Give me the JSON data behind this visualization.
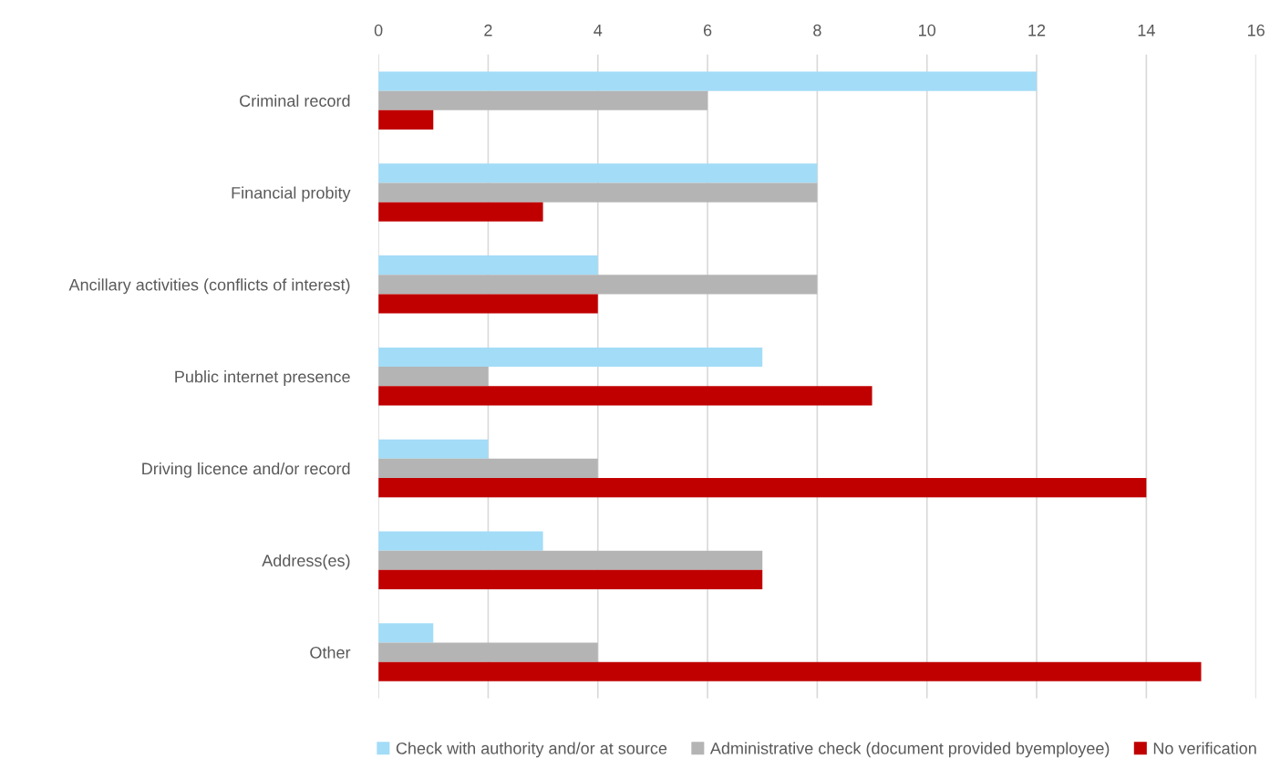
{
  "chart_data": {
    "type": "bar",
    "orientation": "horizontal",
    "categories": [
      "Criminal record",
      "Financial probity",
      "Ancillary activities (conflicts of interest)",
      "Public internet presence",
      "Driving licence and/or record",
      "Address(es)",
      "Other"
    ],
    "series": [
      {
        "name": "Check with authority and/or at source",
        "color": "#a3dcf7",
        "values": [
          12,
          8,
          4,
          7,
          2,
          3,
          1
        ]
      },
      {
        "name": "Administrative check (document provided byemployee)",
        "color": "#b4b4b4",
        "values": [
          6,
          8,
          8,
          2,
          4,
          7,
          4
        ]
      },
      {
        "name": "No verification",
        "color": "#c00000",
        "values": [
          1,
          3,
          4,
          9,
          14,
          7,
          15
        ]
      }
    ],
    "xlim": [
      0,
      16
    ],
    "xticks": [
      0,
      2,
      4,
      6,
      8,
      10,
      12,
      14,
      16
    ],
    "grid": "x",
    "legend": "bottom"
  }
}
